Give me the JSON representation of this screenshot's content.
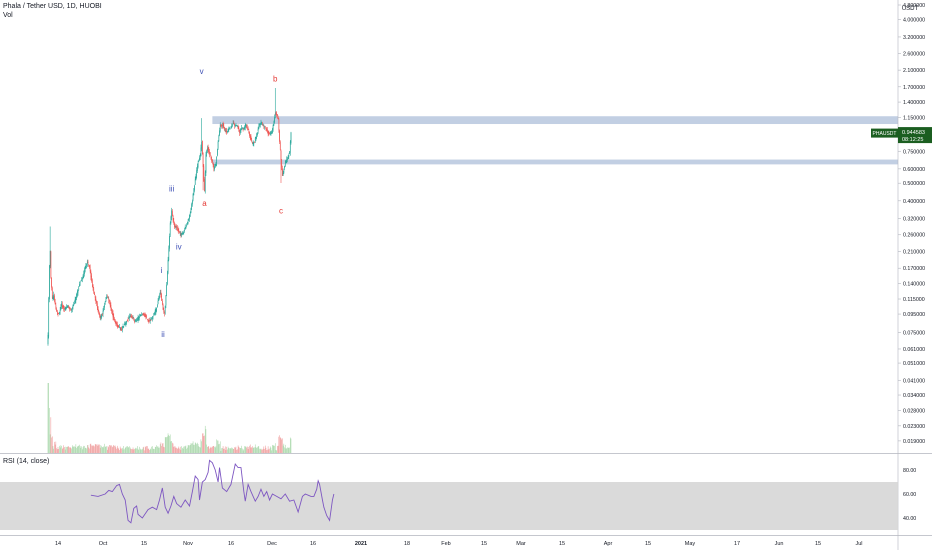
{
  "header": {
    "title": "Phala / Tether USD, 1D, HUOBI",
    "vol_label": "Vol",
    "currency": "USDT",
    "rsi_label": "RSI (14, close)"
  },
  "price_tag": {
    "symbol": "PHAUSDT",
    "price": "0.944583",
    "countdown": "08:12:25"
  },
  "colors": {
    "up": "#26a69a",
    "down": "#ef5350",
    "up_volume": "#a5d6a7",
    "down_volume": "#ef9a9a",
    "zone": "#b7c7de",
    "rsi_line": "#7e57c2",
    "rsi_band": "#d6d6d6",
    "wave_impulse": "#3f51b5",
    "wave_corrective": "#e53935",
    "price_tag": "#1b5e20"
  },
  "chart_data": {
    "type": "candlestick",
    "title": "Phala / Tether USD, 1D, HUOBI",
    "y_scale": "log",
    "ylim": [
      0.0165,
      4.8
    ],
    "y_ticks": [
      "4.800000",
      "4.000000",
      "3.200000",
      "2.600000",
      "2.100000",
      "1.700000",
      "1.400000",
      "1.150000",
      "0.950000",
      "0.750000",
      "0.600000",
      "0.500000",
      "0.400000",
      "0.320000",
      "0.260000",
      "0.210000",
      "0.170000",
      "0.140000",
      "0.115000",
      "0.095000",
      "0.075000",
      "0.061000",
      "0.051000",
      "0.041000",
      "0.034000",
      "0.028000",
      "0.023000",
      "0.019000"
    ],
    "x_ticks": [
      "14",
      "Oct",
      "15",
      "Nov",
      "16",
      "Dec",
      "16",
      "2021",
      "18",
      "Feb",
      "15",
      "Mar",
      "15",
      "Apr",
      "15",
      "May",
      "17",
      "Jun",
      "15",
      "Jul"
    ],
    "x_ticks_bold": [
      "2021"
    ],
    "grid": false,
    "anchors": [
      [
        0,
        0.072
      ],
      [
        1,
        0.115
      ],
      [
        2,
        0.175
      ],
      [
        3,
        0.21
      ],
      [
        4,
        0.15
      ],
      [
        6,
        0.115
      ],
      [
        8,
        0.12
      ],
      [
        11,
        0.1
      ],
      [
        15,
        0.095
      ],
      [
        19,
        0.108
      ],
      [
        23,
        0.1
      ],
      [
        27,
        0.106
      ],
      [
        32,
        0.1
      ],
      [
        37,
        0.11
      ],
      [
        41,
        0.125
      ],
      [
        44,
        0.14
      ],
      [
        48,
        0.15
      ],
      [
        52,
        0.17
      ],
      [
        55,
        0.185
      ],
      [
        58,
        0.172
      ],
      [
        61,
        0.145
      ],
      [
        64,
        0.125
      ],
      [
        67,
        0.112
      ],
      [
        70,
        0.1
      ],
      [
        73,
        0.09
      ],
      [
        76,
        0.096
      ],
      [
        79,
        0.107
      ],
      [
        82,
        0.118
      ],
      [
        85,
        0.114
      ],
      [
        88,
        0.102
      ],
      [
        91,
        0.092
      ],
      [
        94,
        0.086
      ],
      [
        97,
        0.082
      ],
      [
        100,
        0.08
      ],
      [
        103,
        0.078
      ],
      [
        106,
        0.082
      ],
      [
        109,
        0.086
      ],
      [
        112,
        0.09
      ],
      [
        115,
        0.093
      ],
      [
        118,
        0.091
      ],
      [
        121,
        0.087
      ],
      [
        124,
        0.088
      ],
      [
        127,
        0.091
      ],
      [
        130,
        0.094
      ],
      [
        133,
        0.095
      ],
      [
        136,
        0.093
      ],
      [
        139,
        0.088
      ],
      [
        142,
        0.087
      ],
      [
        145,
        0.09
      ],
      [
        148,
        0.095
      ],
      [
        151,
        0.1
      ],
      [
        154,
        0.113
      ],
      [
        157,
        0.125
      ],
      [
        159,
        0.113
      ],
      [
        161,
        0.1
      ],
      [
        163,
        0.095
      ],
      [
        165,
        0.12
      ],
      [
        167,
        0.16
      ],
      [
        169,
        0.22
      ],
      [
        171,
        0.3
      ],
      [
        173,
        0.35
      ],
      [
        175,
        0.31
      ],
      [
        177,
        0.29
      ],
      [
        180,
        0.285
      ],
      [
        183,
        0.27
      ],
      [
        186,
        0.26
      ],
      [
        189,
        0.27
      ],
      [
        192,
        0.285
      ],
      [
        195,
        0.3
      ],
      [
        198,
        0.33
      ],
      [
        201,
        0.38
      ],
      [
        204,
        0.46
      ],
      [
        207,
        0.55
      ],
      [
        210,
        0.65
      ],
      [
        213,
        0.71
      ],
      [
        215,
        0.85
      ],
      [
        217,
        0.62
      ],
      [
        219,
        0.45
      ],
      [
        221,
        0.72
      ],
      [
        223,
        0.78
      ],
      [
        226,
        0.73
      ],
      [
        229,
        0.67
      ],
      [
        232,
        0.6
      ],
      [
        235,
        0.64
      ],
      [
        238,
        0.85
      ],
      [
        241,
        1.05
      ],
      [
        244,
        1.05
      ],
      [
        247,
        0.99
      ],
      [
        250,
        0.96
      ],
      [
        253,
        1.0
      ],
      [
        256,
        1.02
      ],
      [
        259,
        1.08
      ],
      [
        262,
        1.04
      ],
      [
        265,
        1.03
      ],
      [
        268,
        0.95
      ],
      [
        271,
        1.0
      ],
      [
        274,
        1.0
      ],
      [
        277,
        1.04
      ],
      [
        280,
        0.98
      ],
      [
        283,
        0.9
      ],
      [
        286,
        0.82
      ],
      [
        289,
        0.85
      ],
      [
        292,
        0.93
      ],
      [
        295,
        1.04
      ],
      [
        298,
        1.07
      ],
      [
        301,
        1.05
      ],
      [
        304,
        1.0
      ],
      [
        307,
        0.97
      ],
      [
        310,
        0.93
      ],
      [
        313,
        0.95
      ],
      [
        316,
        1.09
      ],
      [
        318,
        1.2
      ],
      [
        320,
        1.2
      ],
      [
        322,
        1.12
      ],
      [
        324,
        0.85
      ],
      [
        326,
        0.67
      ],
      [
        328,
        0.55
      ],
      [
        330,
        0.6
      ],
      [
        332,
        0.65
      ],
      [
        334,
        0.67
      ],
      [
        336,
        0.7
      ],
      [
        338,
        0.74
      ],
      [
        340,
        0.945
      ]
    ],
    "candle_count": 341,
    "zones": [
      {
        "from_candle": 230,
        "to": "right-edge",
        "low": 1.06,
        "high": 1.17
      },
      {
        "from_candle": 230,
        "to": "right-edge",
        "low": 0.635,
        "high": 0.675
      }
    ],
    "wave_labels": [
      {
        "text": "i",
        "candle": 159,
        "price": 0.16,
        "color": "impulse"
      },
      {
        "text": "ii",
        "candle": 161,
        "price": 0.071,
        "color": "impulse"
      },
      {
        "text": "iii",
        "candle": 173,
        "price": 0.45,
        "color": "impulse"
      },
      {
        "text": "iv",
        "candle": 183,
        "price": 0.215,
        "color": "impulse"
      },
      {
        "text": "v",
        "candle": 215,
        "price": 2.0,
        "color": "impulse"
      },
      {
        "text": "a",
        "candle": 219,
        "price": 0.375,
        "color": "corrective"
      },
      {
        "text": "b",
        "candle": 318,
        "price": 1.82,
        "color": "corrective"
      },
      {
        "text": "c",
        "candle": 326,
        "price": 0.34,
        "color": "corrective"
      }
    ],
    "rsi": {
      "ylim": [
        30,
        90
      ],
      "ticks": [
        "80.00",
        "60.00",
        "40.00"
      ],
      "band": [
        30,
        70
      ],
      "series": [
        [
          0,
          59
        ],
        [
          10,
          58
        ],
        [
          20,
          60
        ],
        [
          25,
          63
        ],
        [
          30,
          62
        ],
        [
          36,
          67
        ],
        [
          40,
          68
        ],
        [
          44,
          60
        ],
        [
          48,
          55
        ],
        [
          52,
          38
        ],
        [
          56,
          36
        ],
        [
          60,
          48
        ],
        [
          64,
          50
        ],
        [
          66,
          43
        ],
        [
          72,
          40
        ],
        [
          80,
          47
        ],
        [
          86,
          49
        ],
        [
          92,
          47
        ],
        [
          96,
          55
        ],
        [
          100,
          65
        ],
        [
          104,
          49
        ],
        [
          108,
          44
        ],
        [
          112,
          50
        ],
        [
          116,
          58
        ],
        [
          120,
          52
        ],
        [
          126,
          49
        ],
        [
          132,
          55
        ],
        [
          138,
          50
        ],
        [
          142,
          62
        ],
        [
          146,
          75
        ],
        [
          150,
          72
        ],
        [
          152,
          55
        ],
        [
          156,
          70
        ],
        [
          160,
          72
        ],
        [
          164,
          78
        ],
        [
          166,
          88
        ],
        [
          170,
          86
        ],
        [
          174,
          80
        ],
        [
          178,
          70
        ],
        [
          180,
          82
        ],
        [
          184,
          65
        ],
        [
          190,
          62
        ],
        [
          196,
          68
        ],
        [
          202,
          85
        ],
        [
          206,
          82
        ],
        [
          210,
          82
        ],
        [
          214,
          62
        ],
        [
          216,
          54
        ],
        [
          220,
          68
        ],
        [
          224,
          62
        ],
        [
          230,
          54
        ],
        [
          234,
          58
        ],
        [
          238,
          64
        ],
        [
          242,
          58
        ],
        [
          246,
          62
        ],
        [
          250,
          55
        ],
        [
          254,
          60
        ],
        [
          260,
          58
        ],
        [
          266,
          56
        ],
        [
          272,
          60
        ],
        [
          278,
          54
        ],
        [
          284,
          55
        ],
        [
          290,
          45
        ],
        [
          296,
          58
        ],
        [
          300,
          60
        ],
        [
          304,
          59
        ],
        [
          308,
          58
        ],
        [
          312,
          58
        ],
        [
          316,
          64
        ],
        [
          318,
          71
        ],
        [
          320,
          68
        ],
        [
          324,
          55
        ],
        [
          326,
          49
        ],
        [
          330,
          42
        ],
        [
          334,
          38
        ],
        [
          338,
          55
        ],
        [
          340,
          60
        ]
      ]
    }
  }
}
